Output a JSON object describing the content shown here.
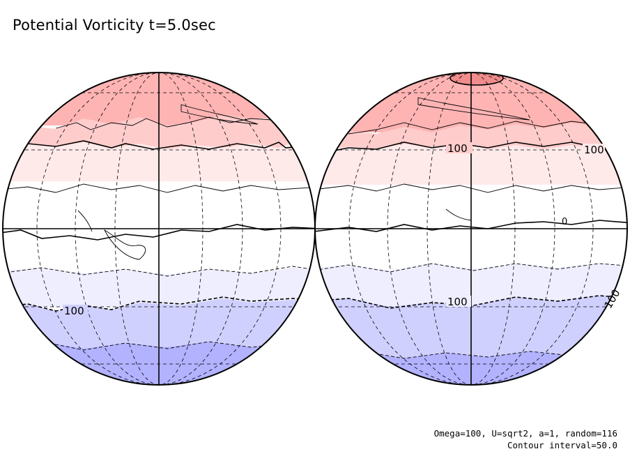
{
  "title": "Potential Vorticity t=5.0sec",
  "footer": {
    "params": "Omega=100, U=sqrt2, a=1, random=116",
    "contour": "Contour interval=50.0"
  },
  "contour_labels": {
    "label_100": "100",
    "label_0": "0"
  },
  "colors": {
    "band_pos_150": "#ffb4b4",
    "band_pos_100": "#ffcccc",
    "band_pos_50": "#ffeaea",
    "band_zero": "#ffffff",
    "band_neg_50": "#eeeeff",
    "band_neg_100": "#d0d0ff",
    "band_neg_150": "#b2b2ff",
    "band_pos_200": "#f08c8c",
    "line": "#000000"
  }
}
